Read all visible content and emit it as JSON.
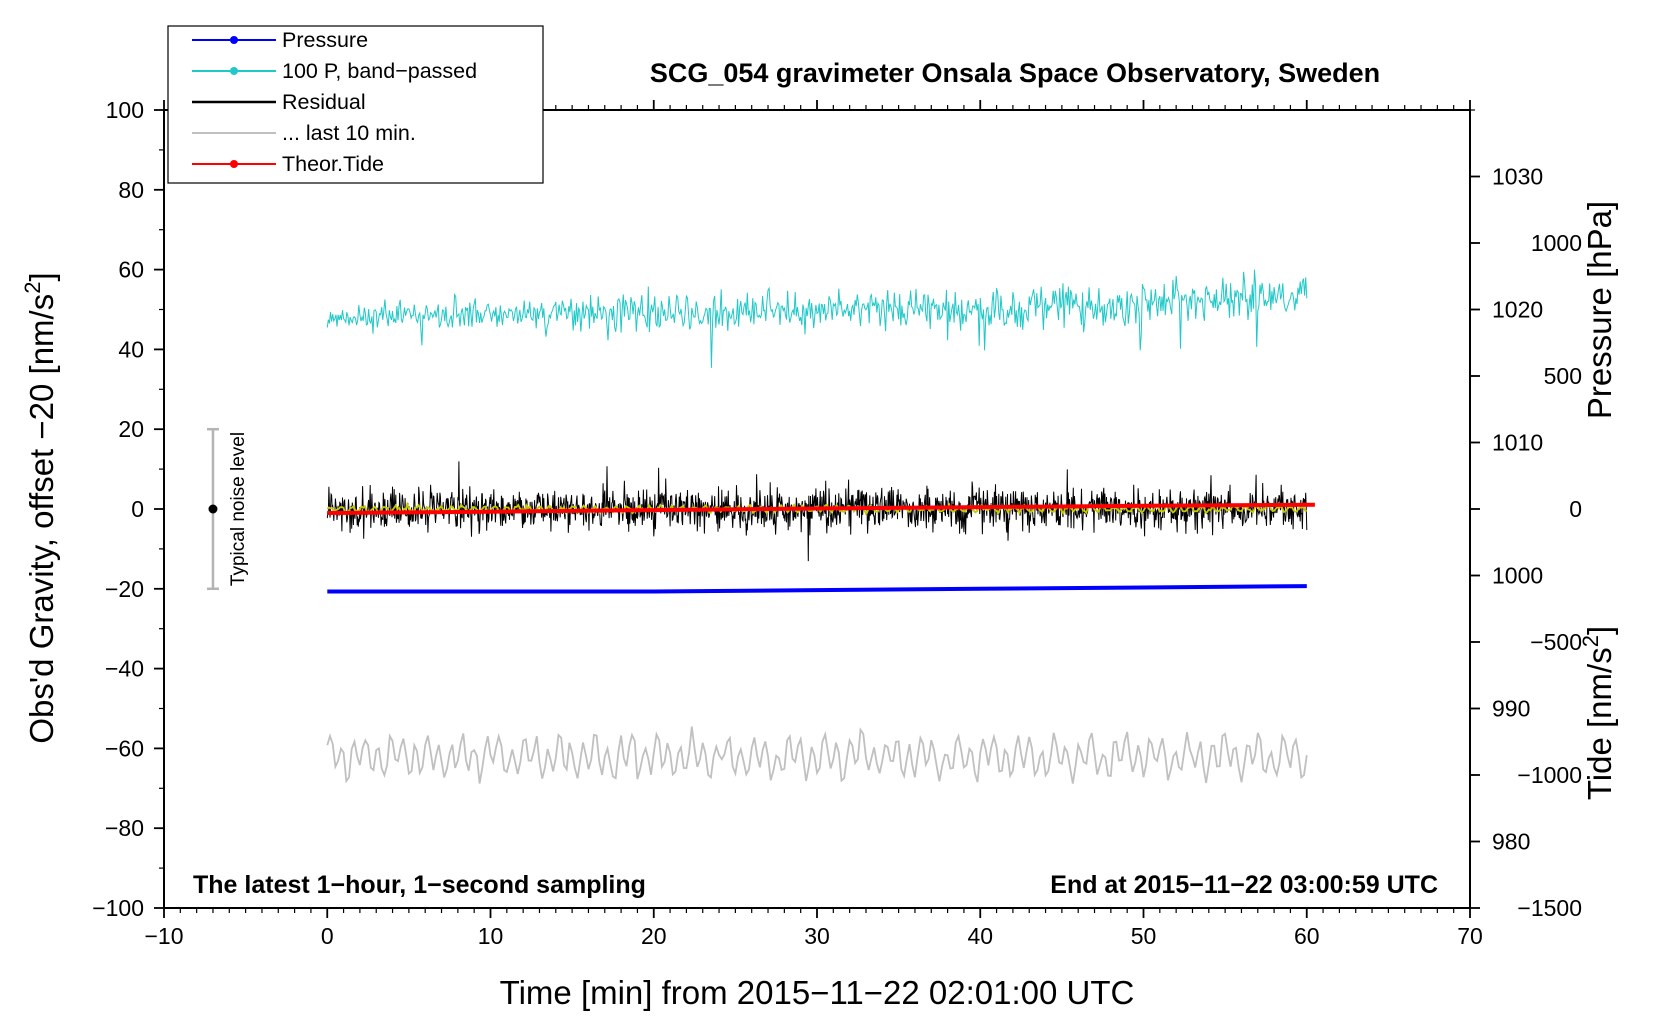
{
  "chart_data": {
    "type": "line",
    "title": "SCG_054 gravimeter Onsala Space Observatory, Sweden",
    "xlabel": "Time [min] from 2015−11−22 02:01:00 UTC",
    "ylabel_left": "Obs'd Gravity, offset −20 [nm/s",
    "ylabel_left_sup": "2",
    "ylabel_left_close": "]",
    "ylabel_pressure": "Pressure [hPa]",
    "ylabel_tide": "Tide [nm/s",
    "ylabel_tide_sup": "2",
    "ylabel_tide_close": "]",
    "xlim": [
      -10,
      70
    ],
    "ylim_left": [
      -100,
      100
    ],
    "ylim_pressure": [
      975,
      1035
    ],
    "ylim_tide": [
      -1500,
      1500
    ],
    "x_ticks": [
      "−10",
      "0",
      "10",
      "20",
      "30",
      "40",
      "50",
      "60",
      "70"
    ],
    "x_tick_values": [
      -10,
      0,
      10,
      20,
      30,
      40,
      50,
      60,
      70
    ],
    "y_left_ticks": [
      "100",
      "80",
      "60",
      "40",
      "20",
      "0",
      "−20",
      "−40",
      "−60",
      "−80",
      "−100"
    ],
    "y_left_tick_values": [
      100,
      80,
      60,
      40,
      20,
      0,
      -20,
      -40,
      -60,
      -80,
      -100
    ],
    "pressure_ticks": [
      "1030",
      "1020",
      "1010",
      "1000",
      "990",
      "980"
    ],
    "pressure_tick_values": [
      1030,
      1020,
      1010,
      1000,
      990,
      980
    ],
    "tide_ticks": [
      "1000",
      "500",
      "0",
      "−500",
      "−1000",
      "−1500"
    ],
    "tide_tick_values": [
      1000,
      500,
      0,
      -500,
      -1000,
      -1500
    ],
    "annotations": {
      "bottom_left": "The latest 1−hour, 1−second sampling",
      "bottom_right": "End at 2015−11−22 03:00:59 UTC",
      "noise_label": "Typical noise level"
    },
    "noise_bar": {
      "x": -7,
      "center": 0,
      "low": -20,
      "high": 20
    },
    "legend": [
      {
        "label": "Pressure",
        "color": "#0000ff",
        "marker": true
      },
      {
        "label": "100 P, band−passed",
        "color": "#20c8c8",
        "marker": true
      },
      {
        "label": "Residual",
        "color": "#000000",
        "marker": false
      },
      {
        "label": "... last 10 min.",
        "color": "#c0c0c0",
        "marker": false
      },
      {
        "label": "Theor.Tide",
        "color": "#ff0000",
        "marker": true
      }
    ],
    "series": [
      {
        "name": "Pressure",
        "axis": "pressure",
        "color": "#0000ff",
        "x": [
          0,
          10,
          20,
          30,
          40,
          50,
          60
        ],
        "values": [
          998.8,
          998.8,
          998.8,
          998.9,
          999.0,
          999.1,
          999.2
        ]
      },
      {
        "name": "100 P, band−passed",
        "axis": "left",
        "color": "#20c8c8",
        "x_range": [
          0,
          60
        ],
        "baseline": [
          [
            0,
            48
          ],
          [
            10,
            49
          ],
          [
            20,
            49
          ],
          [
            30,
            50
          ],
          [
            40,
            50
          ],
          [
            50,
            51
          ],
          [
            60,
            54
          ]
        ],
        "amplitude": [
          [
            0,
            2.5
          ],
          [
            10,
            3
          ],
          [
            20,
            4
          ],
          [
            30,
            3.5
          ],
          [
            40,
            4.5
          ],
          [
            50,
            4.5
          ],
          [
            60,
            4.5
          ]
        ]
      },
      {
        "name": "Residual",
        "axis": "left",
        "color": "#000000",
        "x_range": [
          0,
          60
        ],
        "baseline": [
          [
            0,
            0
          ],
          [
            60,
            0
          ]
        ],
        "amplitude": [
          [
            0,
            4.5
          ],
          [
            60,
            4.5
          ]
        ]
      },
      {
        "name": "Residual smoothed",
        "axis": "left",
        "color": "#c8c800",
        "x_range": [
          0,
          60
        ],
        "baseline": [
          [
            0,
            0
          ],
          [
            60,
            0
          ]
        ],
        "amplitude": [
          [
            0,
            1.0
          ],
          [
            60,
            1.0
          ]
        ]
      },
      {
        "name": "... last 10 min.",
        "axis": "left",
        "color": "#c0c0c0",
        "x_range": [
          0,
          60
        ],
        "baseline": [
          [
            0,
            -62
          ],
          [
            60,
            -62
          ]
        ],
        "amplitude": [
          [
            0,
            4.5
          ],
          [
            60,
            4.5
          ]
        ]
      },
      {
        "name": "Theor.Tide",
        "axis": "tide",
        "color": "#ff0000",
        "x": [
          0,
          10,
          20,
          30,
          40,
          50,
          60.5
        ],
        "values": [
          -15,
          -10,
          -4,
          2,
          7,
          12,
          16
        ]
      }
    ]
  }
}
